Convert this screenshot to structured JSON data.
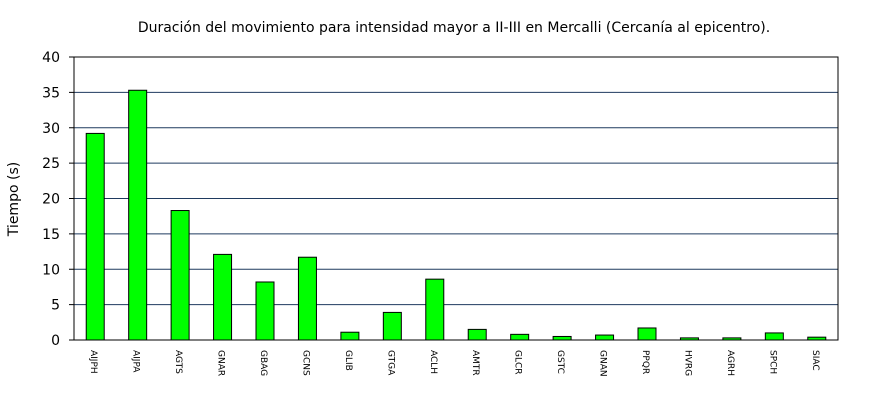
{
  "chart_data": {
    "type": "bar",
    "title": "Duración del movimiento para intensidad mayor a II-III en Mercalli (Cercanía al epicentro).",
    "xlabel": "",
    "ylabel": "Tiempo (s)",
    "ylim": [
      0,
      40
    ],
    "yticks": [
      0,
      5,
      10,
      15,
      20,
      25,
      30,
      35,
      40
    ],
    "ytick_labels": [
      "0",
      "5",
      "10",
      "15",
      "20",
      "25",
      "30",
      "35",
      "40"
    ],
    "grid": true,
    "legend": "none",
    "categories": [
      "AIJPH",
      "AIJPA",
      "AGTS",
      "GNAR",
      "GBAG",
      "GCNS",
      "GLIB",
      "GTGA",
      "ACLH",
      "AMTR",
      "GLCR",
      "GSTC",
      "GNAN",
      "PPQR",
      "HVRG",
      "AGRH",
      "SPCH",
      "SIAC"
    ],
    "values": [
      29.2,
      35.3,
      18.3,
      12.1,
      8.2,
      11.7,
      1.1,
      3.9,
      8.6,
      1.5,
      0.8,
      0.5,
      0.7,
      1.7,
      0.3,
      0.3,
      1.0,
      0.4
    ],
    "colors": {
      "bar_fill": "#00ff00",
      "bar_stroke": "#000000",
      "grid": "#1f3a5f",
      "axis": "#000000",
      "background": "#ffffff"
    }
  }
}
